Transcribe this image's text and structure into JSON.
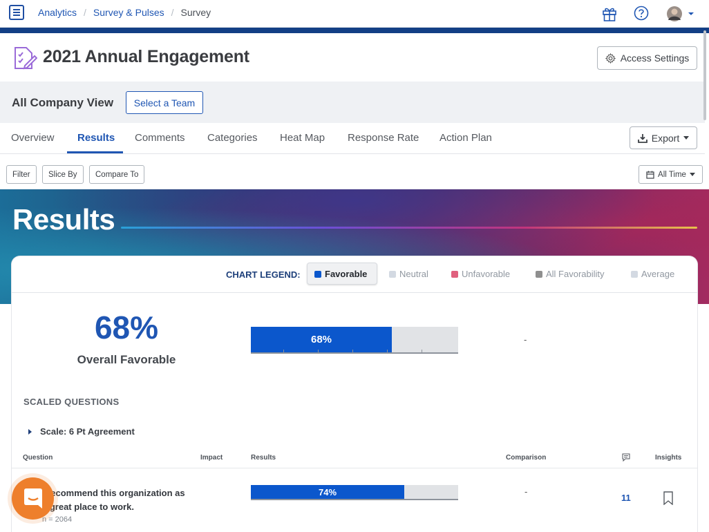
{
  "breadcrumb": [
    "Analytics",
    "Survey & Pulses",
    "Survey"
  ],
  "survey": {
    "title": "2021 Annual Engagement",
    "access_button": "Access Settings"
  },
  "view": {
    "title": "All Company View",
    "team_button": "Select a Team"
  },
  "tabs": [
    {
      "label": "Overview",
      "active": false
    },
    {
      "label": "Results",
      "active": true
    },
    {
      "label": "Comments",
      "active": false
    },
    {
      "label": "Categories",
      "active": false
    },
    {
      "label": "Heat Map",
      "active": false
    },
    {
      "label": "Response Rate",
      "active": false
    },
    {
      "label": "Action Plan",
      "active": false
    }
  ],
  "export_button": "Export",
  "filters": [
    "Filter",
    "Slice By",
    "Compare To"
  ],
  "time_filter": "All Time",
  "banner_title": "Results",
  "legend": {
    "label": "CHART LEGEND:",
    "items": [
      {
        "label": "Favorable",
        "color": "#0b57cc",
        "active": true
      },
      {
        "label": "Neutral",
        "color": "#d3d9e2",
        "active": false
      },
      {
        "label": "Unfavorable",
        "color": "#e0607e",
        "active": false
      },
      {
        "label": "All Favorability",
        "color": "#8f8f8f",
        "active": false
      },
      {
        "label": "Average",
        "color": "#d3d9e2",
        "active": false
      }
    ]
  },
  "overall": {
    "value": "68%",
    "label": "Overall Favorable",
    "bar_label": "68%",
    "fraction": 0.68,
    "comparison": "-"
  },
  "section_title": "SCALED QUESTIONS",
  "scale_label": "Scale: 6 Pt Agreement",
  "table": {
    "headers": [
      "Question",
      "Impact",
      "Results",
      "Comparison",
      "Insights"
    ],
    "rows": [
      {
        "question": "I recommend this organization as a great place to work.",
        "n": "n = 2064",
        "bar_label": "74%",
        "fraction": 0.74,
        "comparison": "-",
        "comments": "11"
      }
    ]
  },
  "colors": {
    "primary": "#1f56b3",
    "navy": "#133f85",
    "favorable": "#0b57cc",
    "chat": "#ee7f2c"
  }
}
